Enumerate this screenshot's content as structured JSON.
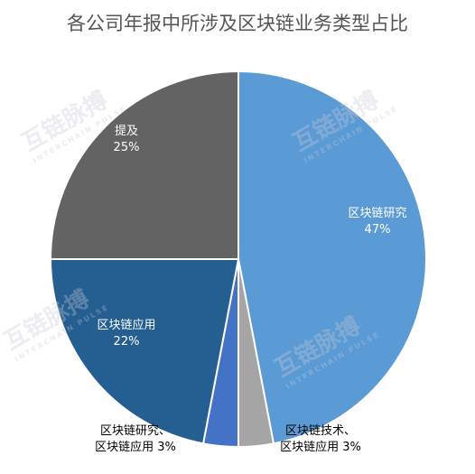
{
  "chart_data": {
    "type": "pie",
    "title": "各公司年报中所涉及区块链业务类型占比",
    "categories": [
      "区块链研究",
      "区块链技术、区块链应用",
      "区块链研究、区块链应用",
      "区块链应用",
      "提及"
    ],
    "values": [
      47,
      3,
      3,
      22,
      25
    ],
    "value_labels": [
      "47%",
      "3%",
      "3%",
      "22%",
      "25%"
    ],
    "colors": [
      "#5b9bd5",
      "#a5a5a5",
      "#4472c4",
      "#255e91",
      "#636363"
    ],
    "watermark": {
      "text": "互链脉搏",
      "subtext": "INTERCHAIN PULSE"
    }
  }
}
